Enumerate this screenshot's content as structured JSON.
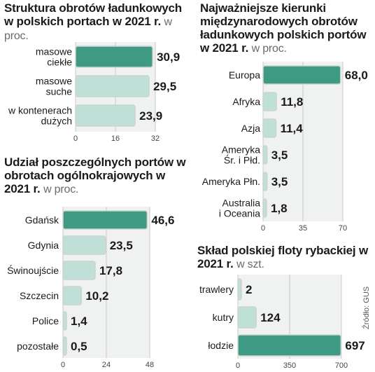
{
  "charts": {
    "cargo_structure": {
      "title": "Struktura obrotów ładunkowych w polskich portach w 2021 r.",
      "unit": "w proc."
    },
    "directions": {
      "title": "Najważniejsze kierunki międzynarodowych obrotów ładunkowych polskich portów w 2021 r.",
      "unit": "w proc."
    },
    "ports_share": {
      "title": "Udział poszczególnych portów w obrotach ogólnokrajowych w 2021 r.",
      "unit": "w proc."
    },
    "fishing_fleet": {
      "title": "Skład polskiej floty rybackiej w 2021 r.",
      "unit": "w szt."
    }
  },
  "source": "Źródło: GUS",
  "colors": {
    "highlight": "#3e9a83",
    "bar": "#bfe0d6",
    "bar_border": "#cfd3d2",
    "panel_bg": "#f0f1f1",
    "grid": "#c8c8c8"
  },
  "chart_data": [
    {
      "id": "cargo_structure",
      "type": "bar",
      "orientation": "horizontal",
      "categories": [
        "masowe ciekłe",
        "masowe suche",
        "w kontenerach dużych"
      ],
      "values": [
        30.9,
        29.5,
        23.9
      ],
      "value_labels": [
        "30,9",
        "29,5",
        "23,9"
      ],
      "xticks": [
        0,
        16,
        32
      ],
      "xlim": [
        0,
        32
      ],
      "highlight_index": 0
    },
    {
      "id": "directions",
      "type": "bar",
      "orientation": "horizontal",
      "categories": [
        "Europa",
        "Afryka",
        "Azja",
        "Ameryka Śr. i Płd.",
        "Ameryka Płn.",
        "Australia i Oceania"
      ],
      "values": [
        68.0,
        11.8,
        11.4,
        3.5,
        3.5,
        1.8
      ],
      "value_labels": [
        "68,0",
        "11,8",
        "11,4",
        "3,5",
        "3,5",
        "1,8"
      ],
      "xticks": [
        0,
        35,
        70
      ],
      "xlim": [
        0,
        70
      ],
      "highlight_index": 0
    },
    {
      "id": "ports_share",
      "type": "bar",
      "orientation": "horizontal",
      "categories": [
        "Gdańsk",
        "Gdynia",
        "Świnoujście",
        "Szczecin",
        "Police",
        "pozostałe"
      ],
      "values": [
        46.6,
        23.5,
        17.8,
        10.2,
        1.4,
        0.5
      ],
      "value_labels": [
        "46,6",
        "23,5",
        "17,8",
        "10,2",
        "1,4",
        "0,5"
      ],
      "xticks": [
        0,
        24,
        48
      ],
      "xlim": [
        0,
        48
      ],
      "highlight_index": 0
    },
    {
      "id": "fishing_fleet",
      "type": "bar",
      "orientation": "horizontal",
      "categories": [
        "trawlery",
        "kutry",
        "łodzie"
      ],
      "values": [
        2,
        124,
        697
      ],
      "value_labels": [
        "2",
        "124",
        "697"
      ],
      "xticks": [
        0,
        350,
        700
      ],
      "xlim": [
        0,
        700
      ],
      "highlight_index": 2
    }
  ]
}
